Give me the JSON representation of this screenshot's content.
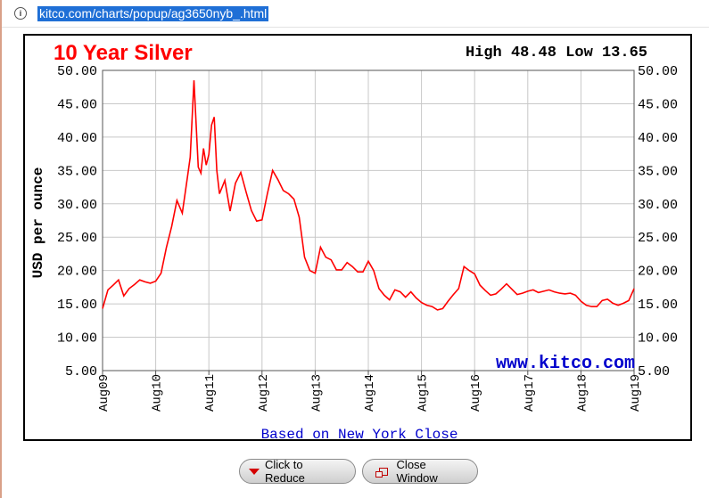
{
  "browser": {
    "url": "kitco.com/charts/popup/ag3650nyb_.html"
  },
  "chart_data": {
    "type": "line",
    "title": "10 Year Silver",
    "high_label": "High",
    "high_value": "48.48",
    "low_label": "Low",
    "low_value": "13.65",
    "ylabel": "USD per ounce",
    "footer": "Based on New York Close",
    "watermark": "www.kitco.com",
    "ylim": [
      5,
      50
    ],
    "y_ticks": [
      "5.00",
      "10.00",
      "15.00",
      "20.00",
      "25.00",
      "30.00",
      "35.00",
      "40.00",
      "45.00",
      "50.00"
    ],
    "x_ticks": [
      "Aug09",
      "Aug10",
      "Aug11",
      "Aug12",
      "Aug13",
      "Aug14",
      "Aug15",
      "Aug16",
      "Aug17",
      "Aug18",
      "Aug19"
    ],
    "grid": true,
    "line_color": "#ff0000",
    "series": [
      {
        "x": [
          2009.6,
          2009.7,
          2009.8,
          2009.9,
          2010.0,
          2010.1,
          2010.2,
          2010.3,
          2010.4,
          2010.5,
          2010.6,
          2010.7,
          2010.8,
          2010.9,
          2011.0,
          2011.1,
          2011.2,
          2011.25,
          2011.32,
          2011.36,
          2011.4,
          2011.45,
          2011.5,
          2011.55,
          2011.6,
          2011.65,
          2011.7,
          2011.75,
          2011.8,
          2011.9,
          2012.0,
          2012.1,
          2012.2,
          2012.3,
          2012.4,
          2012.5,
          2012.6,
          2012.7,
          2012.8,
          2012.9,
          2013.0,
          2013.1,
          2013.2,
          2013.3,
          2013.4,
          2013.5,
          2013.6,
          2013.7,
          2013.8,
          2013.9,
          2014.0,
          2014.1,
          2014.2,
          2014.3,
          2014.4,
          2014.5,
          2014.6,
          2014.7,
          2014.8,
          2014.9,
          2015.0,
          2015.1,
          2015.2,
          2015.3,
          2015.4,
          2015.5,
          2015.6,
          2015.7,
          2015.8,
          2015.9,
          2016.0,
          2016.1,
          2016.2,
          2016.3,
          2016.4,
          2016.5,
          2016.6,
          2016.7,
          2016.8,
          2016.9,
          2017.0,
          2017.1,
          2017.2,
          2017.3,
          2017.4,
          2017.5,
          2017.6,
          2017.7,
          2017.8,
          2017.9,
          2018.0,
          2018.1,
          2018.2,
          2018.3,
          2018.4,
          2018.5,
          2018.6,
          2018.7,
          2018.8,
          2018.9,
          2019.0,
          2019.1,
          2019.2,
          2019.3,
          2019.4,
          2019.5,
          2019.6
        ],
        "y": [
          14.3,
          17.1,
          17.8,
          18.6,
          16.2,
          17.3,
          17.9,
          18.6,
          18.3,
          18.1,
          18.4,
          19.6,
          23.4,
          26.6,
          30.5,
          28.6,
          34.2,
          37.0,
          48.5,
          42.0,
          35.5,
          34.6,
          38.3,
          35.8,
          37.4,
          41.8,
          43.0,
          35.0,
          31.5,
          33.5,
          28.9,
          33.1,
          34.7,
          31.8,
          29.0,
          27.4,
          27.6,
          31.5,
          35.0,
          33.6,
          32.0,
          31.5,
          30.7,
          28.0,
          22.0,
          20.0,
          19.6,
          23.5,
          22.0,
          21.6,
          20.1,
          20.1,
          21.2,
          20.6,
          19.8,
          19.8,
          21.4,
          20.0,
          17.3,
          16.3,
          15.6,
          17.1,
          16.8,
          16.0,
          16.8,
          15.9,
          15.2,
          14.8,
          14.6,
          14.1,
          14.3,
          15.4,
          16.4,
          17.3,
          20.6,
          20.0,
          19.5,
          17.8,
          17.0,
          16.3,
          16.5,
          17.2,
          18.0,
          17.2,
          16.4,
          16.6,
          16.9,
          17.1,
          16.7,
          16.9,
          17.1,
          16.8,
          16.6,
          16.5,
          16.6,
          16.3,
          15.4,
          14.8,
          14.6,
          14.6,
          15.5,
          15.7,
          15.1,
          14.8,
          15.1,
          15.5,
          17.3
        ]
      }
    ]
  },
  "buttons": {
    "reduce_label": "Click to Reduce",
    "close_label": "Close Window"
  }
}
